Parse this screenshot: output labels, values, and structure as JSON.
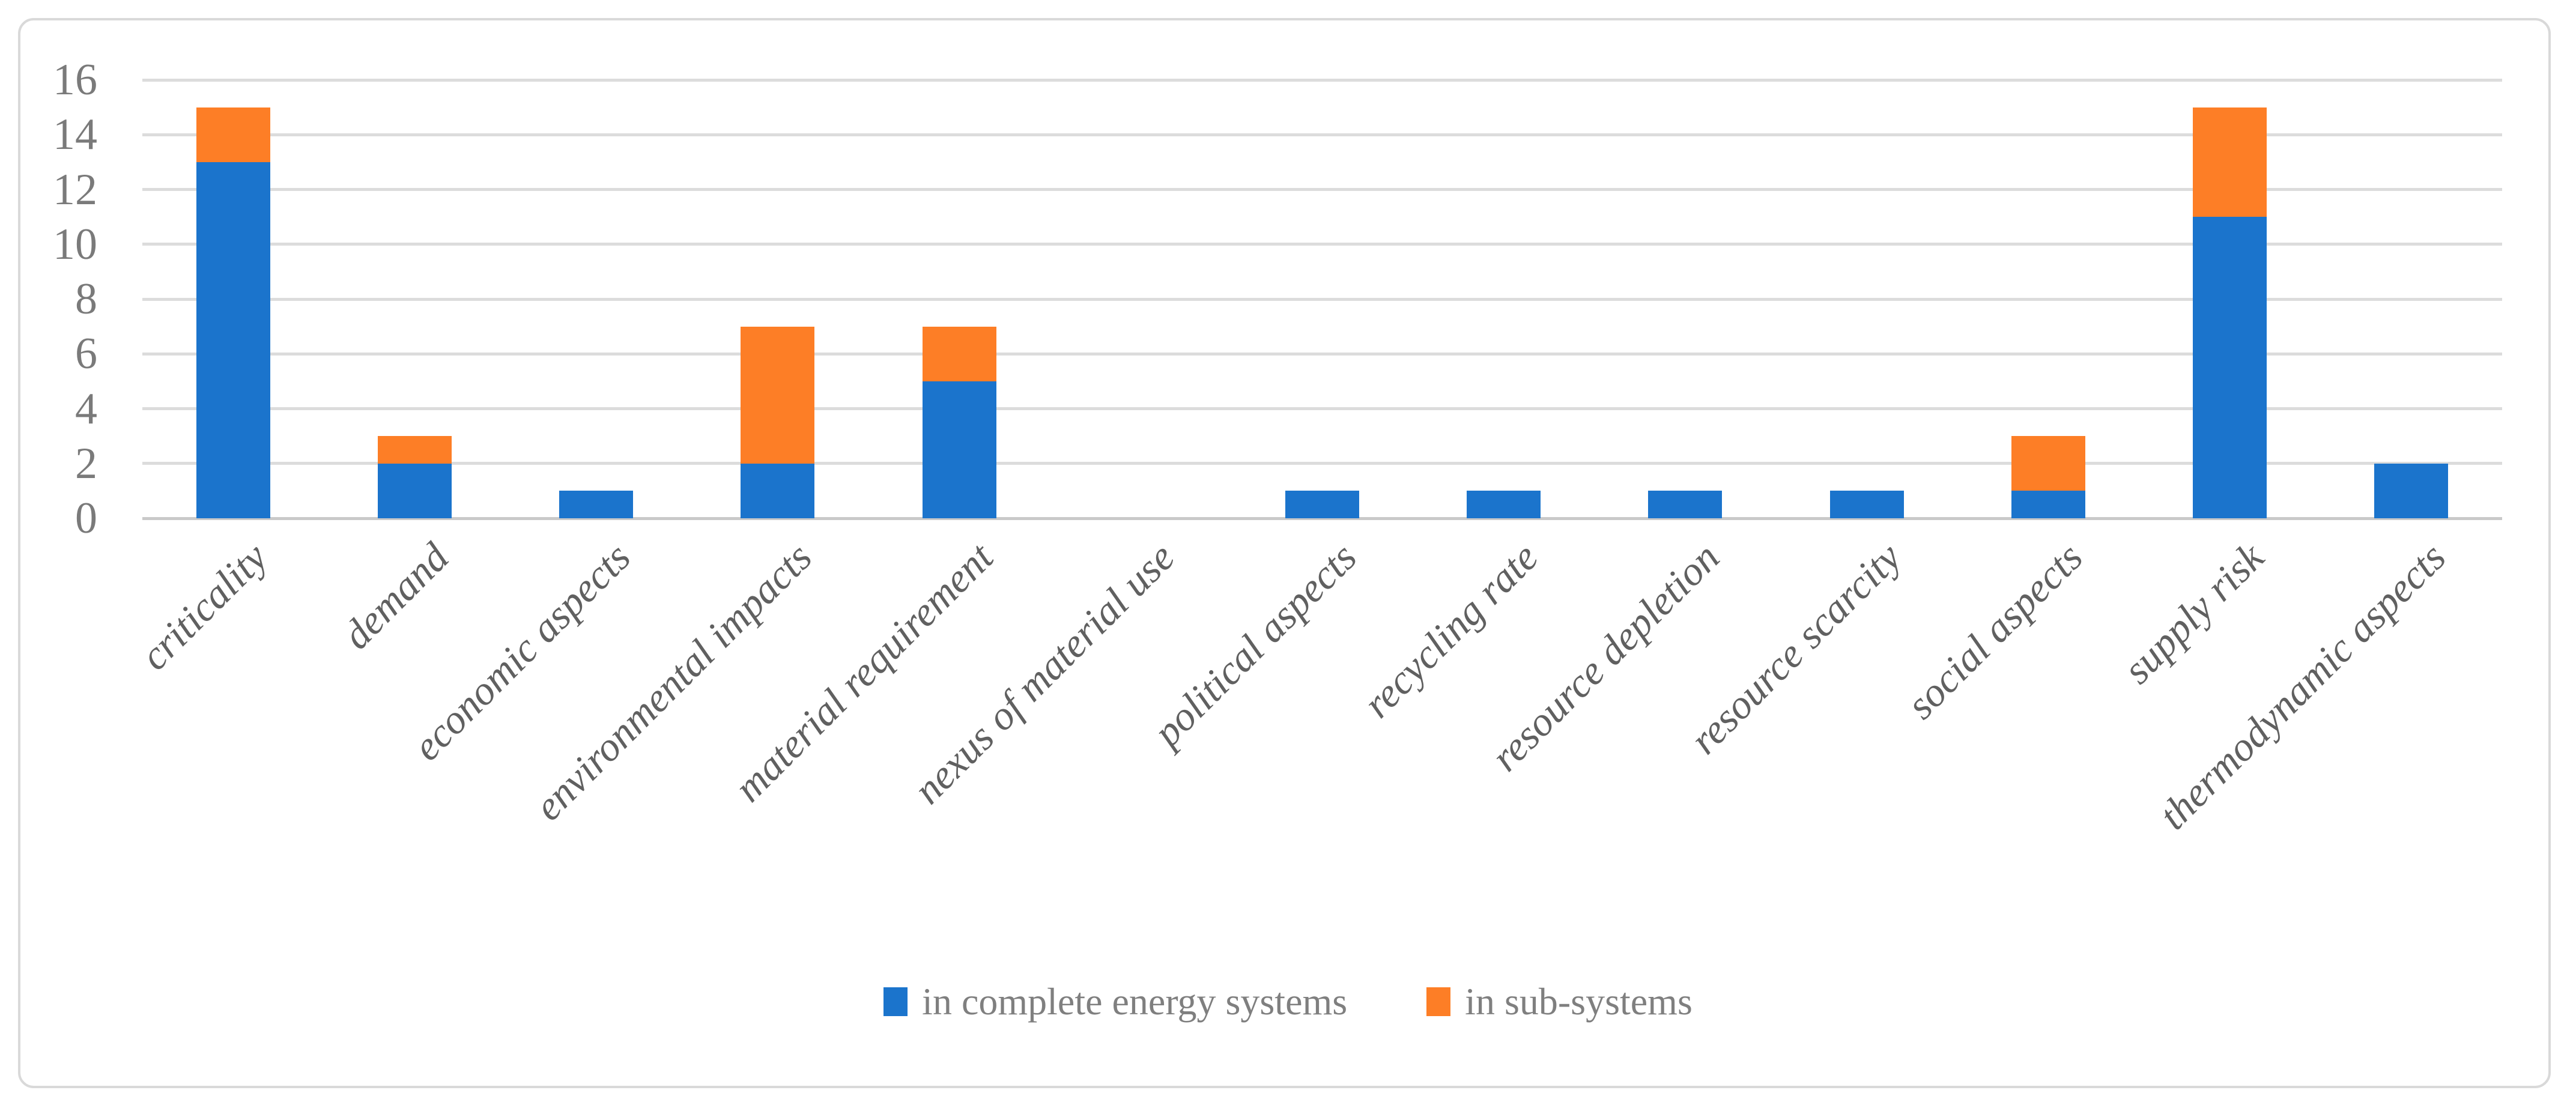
{
  "figure": {
    "background": "#FFFFFF",
    "border_color": "#D9D9D9"
  },
  "chart_data": {
    "type": "bar",
    "stacked": true,
    "title": "",
    "xlabel": "",
    "ylabel": "",
    "categories": [
      "criticality",
      "demand",
      "economic aspects",
      "environmental impacts",
      "material requirement",
      "nexus of material use",
      "political aspects",
      "recycling rate",
      "resource depletion",
      "resource scarcity",
      "social aspects",
      "supply risk",
      "thermodynamic aspects"
    ],
    "series": [
      {
        "name": "in complete energy systems",
        "color": "#1B74CC",
        "values": [
          13,
          2,
          1,
          2,
          5,
          0,
          1,
          1,
          1,
          1,
          1,
          11,
          2
        ]
      },
      {
        "name": "in sub-systems",
        "color": "#FD7E26",
        "values": [
          2,
          1,
          0,
          5,
          2,
          0,
          0,
          0,
          0,
          0,
          2,
          4,
          0
        ]
      }
    ],
    "totals": [
      15,
      3,
      1,
      7,
      7,
      0,
      1,
      1,
      1,
      1,
      3,
      15,
      2
    ],
    "ylim": [
      0,
      16
    ],
    "yticks": [
      0,
      2,
      4,
      6,
      8,
      10,
      12,
      14,
      16
    ],
    "grid": true,
    "gridline_color": "#DCDCDC",
    "axis_line_color": "#C9C9C9",
    "ytick_color": "#7A7A7A",
    "xlabel_color": "#606060",
    "legend_position": "bottom",
    "legend_text_color": "#7F7F7F"
  }
}
